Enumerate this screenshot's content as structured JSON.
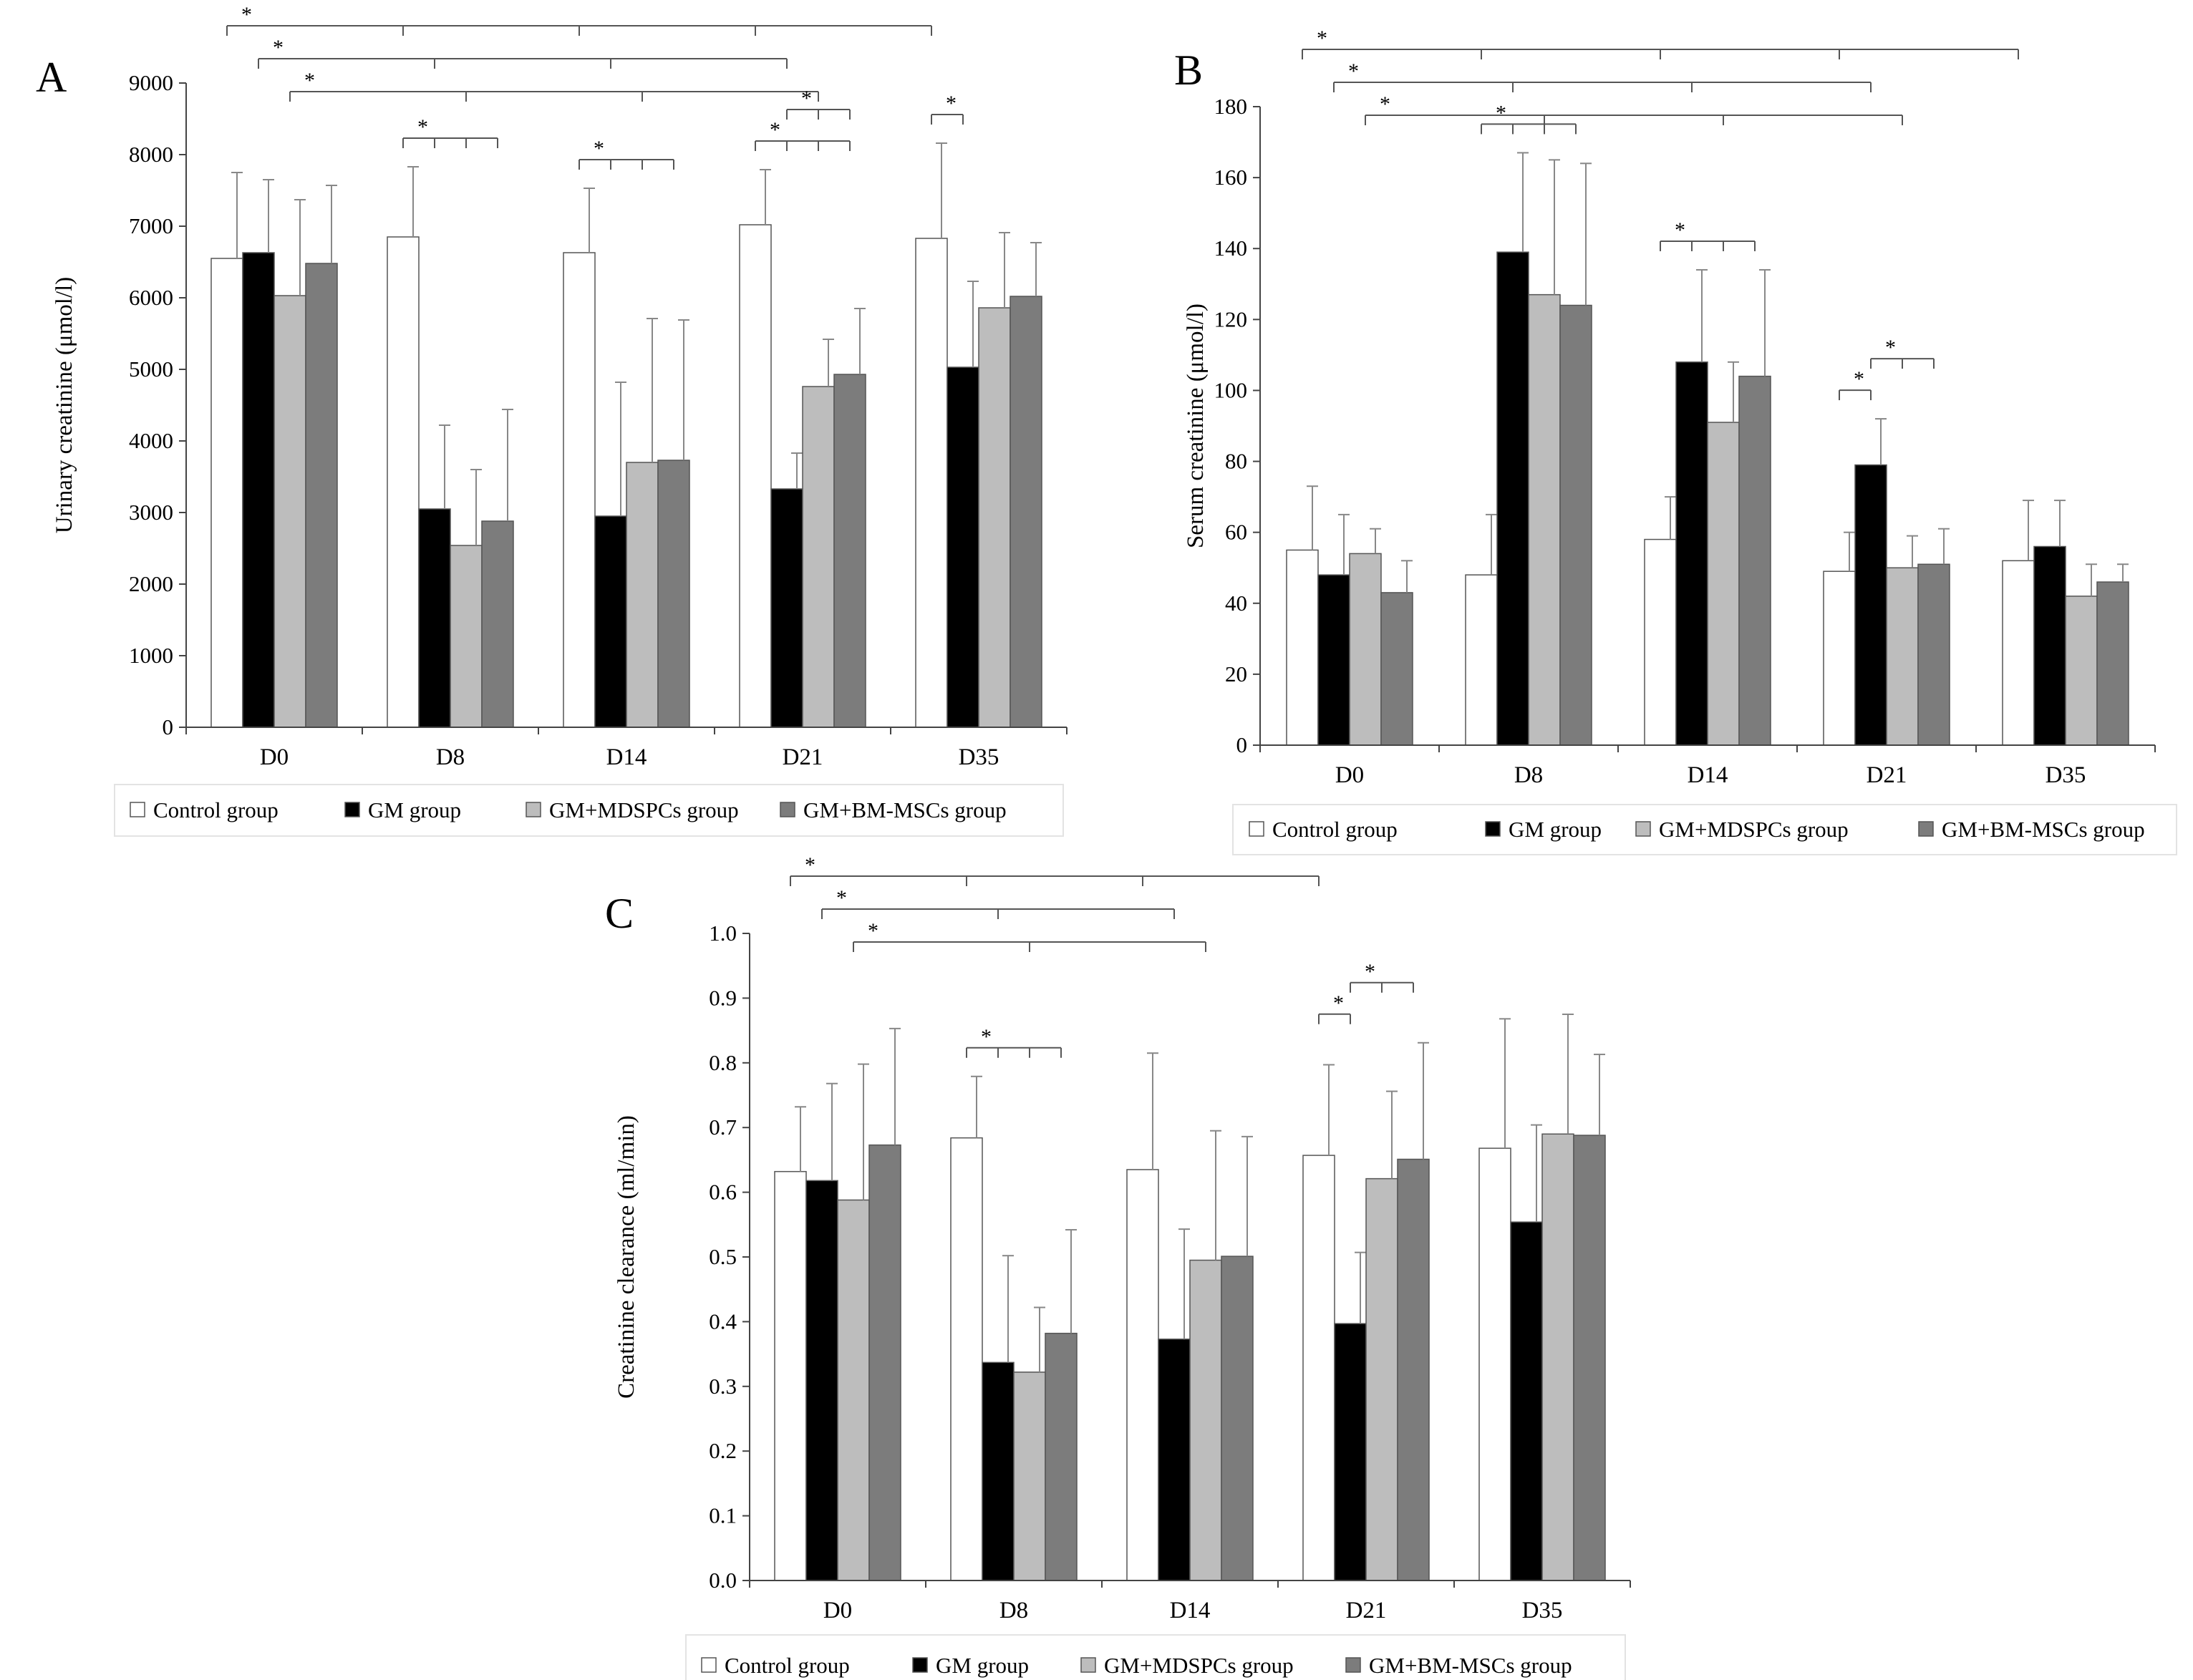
{
  "legend_colors": {
    "Control group": "#ffffff",
    "GM group": "#000000",
    "GM+MDSPCs group": "#bdbdbd",
    "GM+BM-MSCs group": "#7c7c7c"
  },
  "chart_data": [
    {
      "panel": "A",
      "type": "bar",
      "ylabel": "Urinary creatinine (μmol/l)",
      "ylim": [
        0,
        9000
      ],
      "yticks": [
        0,
        1000,
        2000,
        3000,
        4000,
        5000,
        6000,
        7000,
        8000,
        9000
      ],
      "categories": [
        "D0",
        "D8",
        "D14",
        "D21",
        "D35"
      ],
      "series": [
        {
          "name": "Control group",
          "values": [
            6550,
            6850,
            6630,
            7020,
            6830
          ],
          "errors": [
            1200,
            980,
            900,
            770,
            1330
          ]
        },
        {
          "name": "GM group",
          "values": [
            6630,
            3050,
            2950,
            3330,
            5030
          ],
          "errors": [
            1020,
            1170,
            1870,
            500,
            1200
          ]
        },
        {
          "name": "GM+MDSPCs group",
          "values": [
            6030,
            2540,
            3700,
            4760,
            5860
          ],
          "errors": [
            1340,
            1060,
            2010,
            660,
            1050
          ]
        },
        {
          "name": "GM+BM-MSCs group",
          "values": [
            6480,
            2880,
            3730,
            4930,
            6020
          ],
          "errors": [
            1090,
            1560,
            1960,
            920,
            750
          ]
        }
      ],
      "significance": [
        {
          "label": "*",
          "from": [
            0,
            0
          ],
          "to": [
            [
              1,
              0
            ],
            [
              2,
              0
            ],
            [
              3,
              0
            ],
            [
              4,
              0
            ]
          ]
        },
        {
          "label": "*",
          "from": [
            0,
            1
          ],
          "to": [
            [
              1,
              1
            ],
            [
              2,
              1
            ],
            [
              3,
              1
            ]
          ]
        },
        {
          "label": "*",
          "from": [
            0,
            2
          ],
          "to": [
            [
              1,
              2
            ],
            [
              2,
              2
            ],
            [
              3,
              2
            ]
          ]
        },
        {
          "label": "*",
          "from": [
            1,
            0
          ],
          "to": [
            [
              1,
              1
            ],
            [
              1,
              2
            ],
            [
              1,
              3
            ]
          ]
        },
        {
          "label": "*",
          "from": [
            2,
            0
          ],
          "to": [
            [
              2,
              1
            ],
            [
              2,
              2
            ],
            [
              2,
              3
            ]
          ]
        },
        {
          "label": "*",
          "from": [
            3,
            0
          ],
          "to": [
            [
              3,
              1
            ],
            [
              3,
              2
            ],
            [
              3,
              3
            ]
          ]
        },
        {
          "label": "*",
          "from": [
            3,
            1
          ],
          "to": [
            [
              3,
              2
            ],
            [
              3,
              3
            ]
          ]
        },
        {
          "label": "*",
          "from": [
            4,
            0
          ],
          "to": [
            [
              4,
              1
            ]
          ]
        }
      ]
    },
    {
      "panel": "B",
      "type": "bar",
      "ylabel": "Serum creatinine (μmol/l)",
      "ylim": [
        0,
        180
      ],
      "yticks": [
        0,
        20,
        40,
        60,
        80,
        100,
        120,
        140,
        160,
        180
      ],
      "categories": [
        "D0",
        "D8",
        "D14",
        "D21",
        "D35"
      ],
      "series": [
        {
          "name": "Control group",
          "values": [
            55,
            48,
            58,
            49,
            52
          ],
          "errors": [
            18,
            17,
            12,
            11,
            17
          ]
        },
        {
          "name": "GM group",
          "values": [
            48,
            139,
            108,
            79,
            56
          ],
          "errors": [
            17,
            28,
            26,
            13,
            13
          ]
        },
        {
          "name": "GM+MDSPCs group",
          "values": [
            54,
            127,
            91,
            50,
            42
          ],
          "errors": [
            7,
            38,
            17,
            9,
            9
          ]
        },
        {
          "name": "GM+BM-MSCs group",
          "values": [
            43,
            124,
            104,
            51,
            46
          ],
          "errors": [
            9,
            40,
            30,
            10,
            5
          ]
        }
      ],
      "significance": [
        {
          "label": "*",
          "from": [
            0,
            0
          ],
          "to": [
            [
              1,
              0
            ],
            [
              2,
              0
            ],
            [
              3,
              0
            ],
            [
              4,
              0
            ]
          ]
        },
        {
          "label": "*",
          "from": [
            0,
            1
          ],
          "to": [
            [
              1,
              1
            ],
            [
              2,
              1
            ],
            [
              3,
              1
            ]
          ]
        },
        {
          "label": "*",
          "from": [
            0,
            2
          ],
          "to": [
            [
              1,
              2
            ],
            [
              2,
              2
            ],
            [
              3,
              2
            ]
          ]
        },
        {
          "label": "*",
          "from": [
            1,
            0
          ],
          "to": [
            [
              1,
              1
            ],
            [
              1,
              2
            ],
            [
              1,
              3
            ]
          ]
        },
        {
          "label": "*",
          "from": [
            2,
            0
          ],
          "to": [
            [
              2,
              1
            ],
            [
              2,
              2
            ],
            [
              2,
              3
            ]
          ]
        },
        {
          "label": "*",
          "from": [
            3,
            0
          ],
          "to": [
            [
              3,
              1
            ]
          ]
        },
        {
          "label": "*",
          "from": [
            3,
            1
          ],
          "to": [
            [
              3,
              2
            ],
            [
              3,
              3
            ]
          ]
        }
      ]
    },
    {
      "panel": "C",
      "type": "bar",
      "ylabel": "Creatinine clearance (ml/min)",
      "ylim": [
        0,
        1.0
      ],
      "yticks": [
        "0.0",
        "0.1",
        "0.2",
        "0.3",
        "0.4",
        "0.5",
        "0.6",
        "0.7",
        "0.8",
        "0.9",
        "1.0"
      ],
      "categories": [
        "D0",
        "D8",
        "D14",
        "D21",
        "D35"
      ],
      "series": [
        {
          "name": "Control group",
          "values": [
            0.632,
            0.684,
            0.635,
            0.657,
            0.668
          ],
          "errors": [
            0.1,
            0.095,
            0.18,
            0.14,
            0.2
          ]
        },
        {
          "name": "GM group",
          "values": [
            0.618,
            0.337,
            0.373,
            0.397,
            0.554
          ],
          "errors": [
            0.15,
            0.165,
            0.17,
            0.11,
            0.15
          ]
        },
        {
          "name": "GM+MDSPCs group",
          "values": [
            0.588,
            0.322,
            0.495,
            0.621,
            0.69
          ],
          "errors": [
            0.21,
            0.1,
            0.2,
            0.135,
            0.185
          ]
        },
        {
          "name": "GM+BM-MSCs group",
          "values": [
            0.673,
            0.382,
            0.501,
            0.651,
            0.688
          ],
          "errors": [
            0.18,
            0.16,
            0.185,
            0.18,
            0.125
          ]
        }
      ],
      "significance": [
        {
          "label": "*",
          "from": [
            0,
            0
          ],
          "to": [
            [
              1,
              0
            ],
            [
              2,
              0
            ],
            [
              3,
              0
            ]
          ]
        },
        {
          "label": "*",
          "from": [
            0,
            1
          ],
          "to": [
            [
              1,
              1
            ],
            [
              2,
              1
            ]
          ]
        },
        {
          "label": "*",
          "from": [
            0,
            2
          ],
          "to": [
            [
              1,
              2
            ],
            [
              2,
              2
            ]
          ]
        },
        {
          "label": "*",
          "from": [
            1,
            0
          ],
          "to": [
            [
              1,
              1
            ],
            [
              1,
              2
            ],
            [
              1,
              3
            ]
          ]
        },
        {
          "label": "*",
          "from": [
            3,
            0
          ],
          "to": [
            [
              3,
              1
            ]
          ]
        },
        {
          "label": "*",
          "from": [
            3,
            1
          ],
          "to": [
            [
              3,
              2
            ],
            [
              3,
              3
            ]
          ]
        }
      ]
    }
  ]
}
